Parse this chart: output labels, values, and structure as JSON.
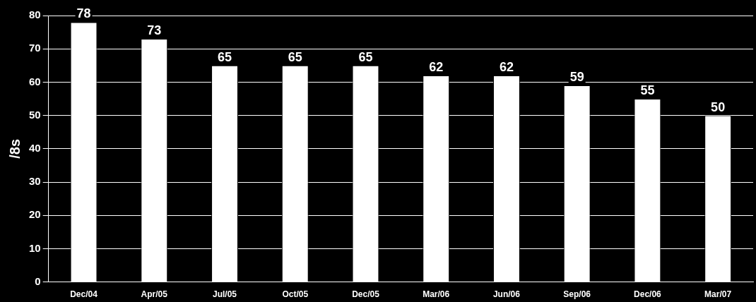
{
  "chart_data": {
    "type": "bar",
    "ylabel": "/8s",
    "categories": [
      "Dec/04",
      "Apr/05",
      "Jul/05",
      "Oct/05",
      "Dec/05",
      "Mar/06",
      "Jun/06",
      "Sep/06",
      "Dec/06",
      "Mar/07"
    ],
    "values": [
      78,
      73,
      65,
      65,
      65,
      62,
      62,
      59,
      55,
      50
    ],
    "color": "#ffffff",
    "ylim": [
      0,
      80
    ],
    "yticks": [
      0,
      10,
      20,
      30,
      40,
      50,
      60,
      70,
      80
    ],
    "grid": "y",
    "data_labels": true
  }
}
